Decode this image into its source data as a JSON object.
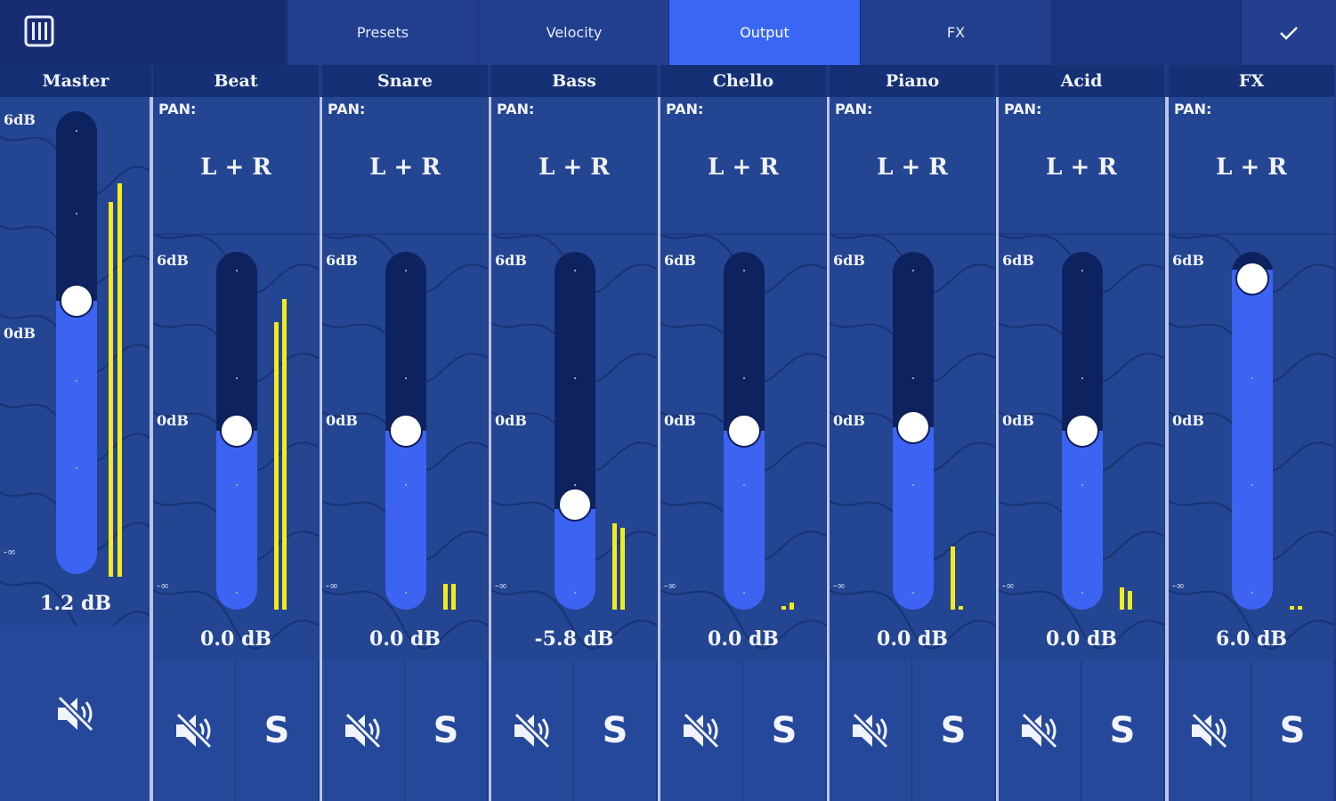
{
  "topbar": {
    "menu_icon": "mixer-grid-icon",
    "tabs": [
      {
        "label": "Presets",
        "active": false
      },
      {
        "label": "Velocity",
        "active": false
      },
      {
        "label": "Output",
        "active": true
      },
      {
        "label": "FX",
        "active": false
      }
    ],
    "confirm_icon": "checkmark-icon"
  },
  "colors": {
    "background": "#1f3a86",
    "header": "#153074",
    "active_tab": "#3a66f5",
    "fader_fill": "#3c63f2",
    "meter": "#f4ea1c"
  },
  "scale": {
    "top": "6dB",
    "mid": "0dB",
    "bottom": "-∞"
  },
  "master": {
    "name": "Master",
    "value": "1.2 dB",
    "fader_level": 0.59,
    "meter_levels": [
      0.81,
      0.85
    ],
    "mute_icon": "speaker-mute-icon"
  },
  "channels": [
    {
      "name": "Beat",
      "pan_label": "PAN:",
      "pan": "L + R",
      "value": "0.0 dB",
      "fader_level": 0.5,
      "meter_levels": [
        0.77,
        0.83
      ]
    },
    {
      "name": "Snare",
      "pan_label": "PAN:",
      "pan": "L + R",
      "value": "0.0 dB",
      "fader_level": 0.5,
      "meter_levels": [
        0.07,
        0.07
      ]
    },
    {
      "name": "Bass",
      "pan_label": "PAN:",
      "pan": "L + R",
      "value": "-5.8 dB",
      "fader_level": 0.28,
      "meter_levels": [
        0.23,
        0.22
      ]
    },
    {
      "name": "Chello",
      "pan_label": "PAN:",
      "pan": "L + R",
      "value": "0.0 dB",
      "fader_level": 0.5,
      "meter_levels": [
        0.01,
        0.02
      ]
    },
    {
      "name": "Piano",
      "pan_label": "PAN:",
      "pan": "L + R",
      "value": "0.0 dB",
      "fader_level": 0.51,
      "meter_levels": [
        0.17,
        0.01
      ]
    },
    {
      "name": "Acid",
      "pan_label": "PAN:",
      "pan": "L + R",
      "value": "0.0 dB",
      "fader_level": 0.5,
      "meter_levels": [
        0.06,
        0.05
      ]
    },
    {
      "name": "FX",
      "pan_label": "PAN:",
      "pan": "L + R",
      "value": "6.0 dB",
      "fader_level": 0.95,
      "meter_levels": [
        0.01,
        0.01
      ]
    }
  ],
  "solo_label": "S"
}
